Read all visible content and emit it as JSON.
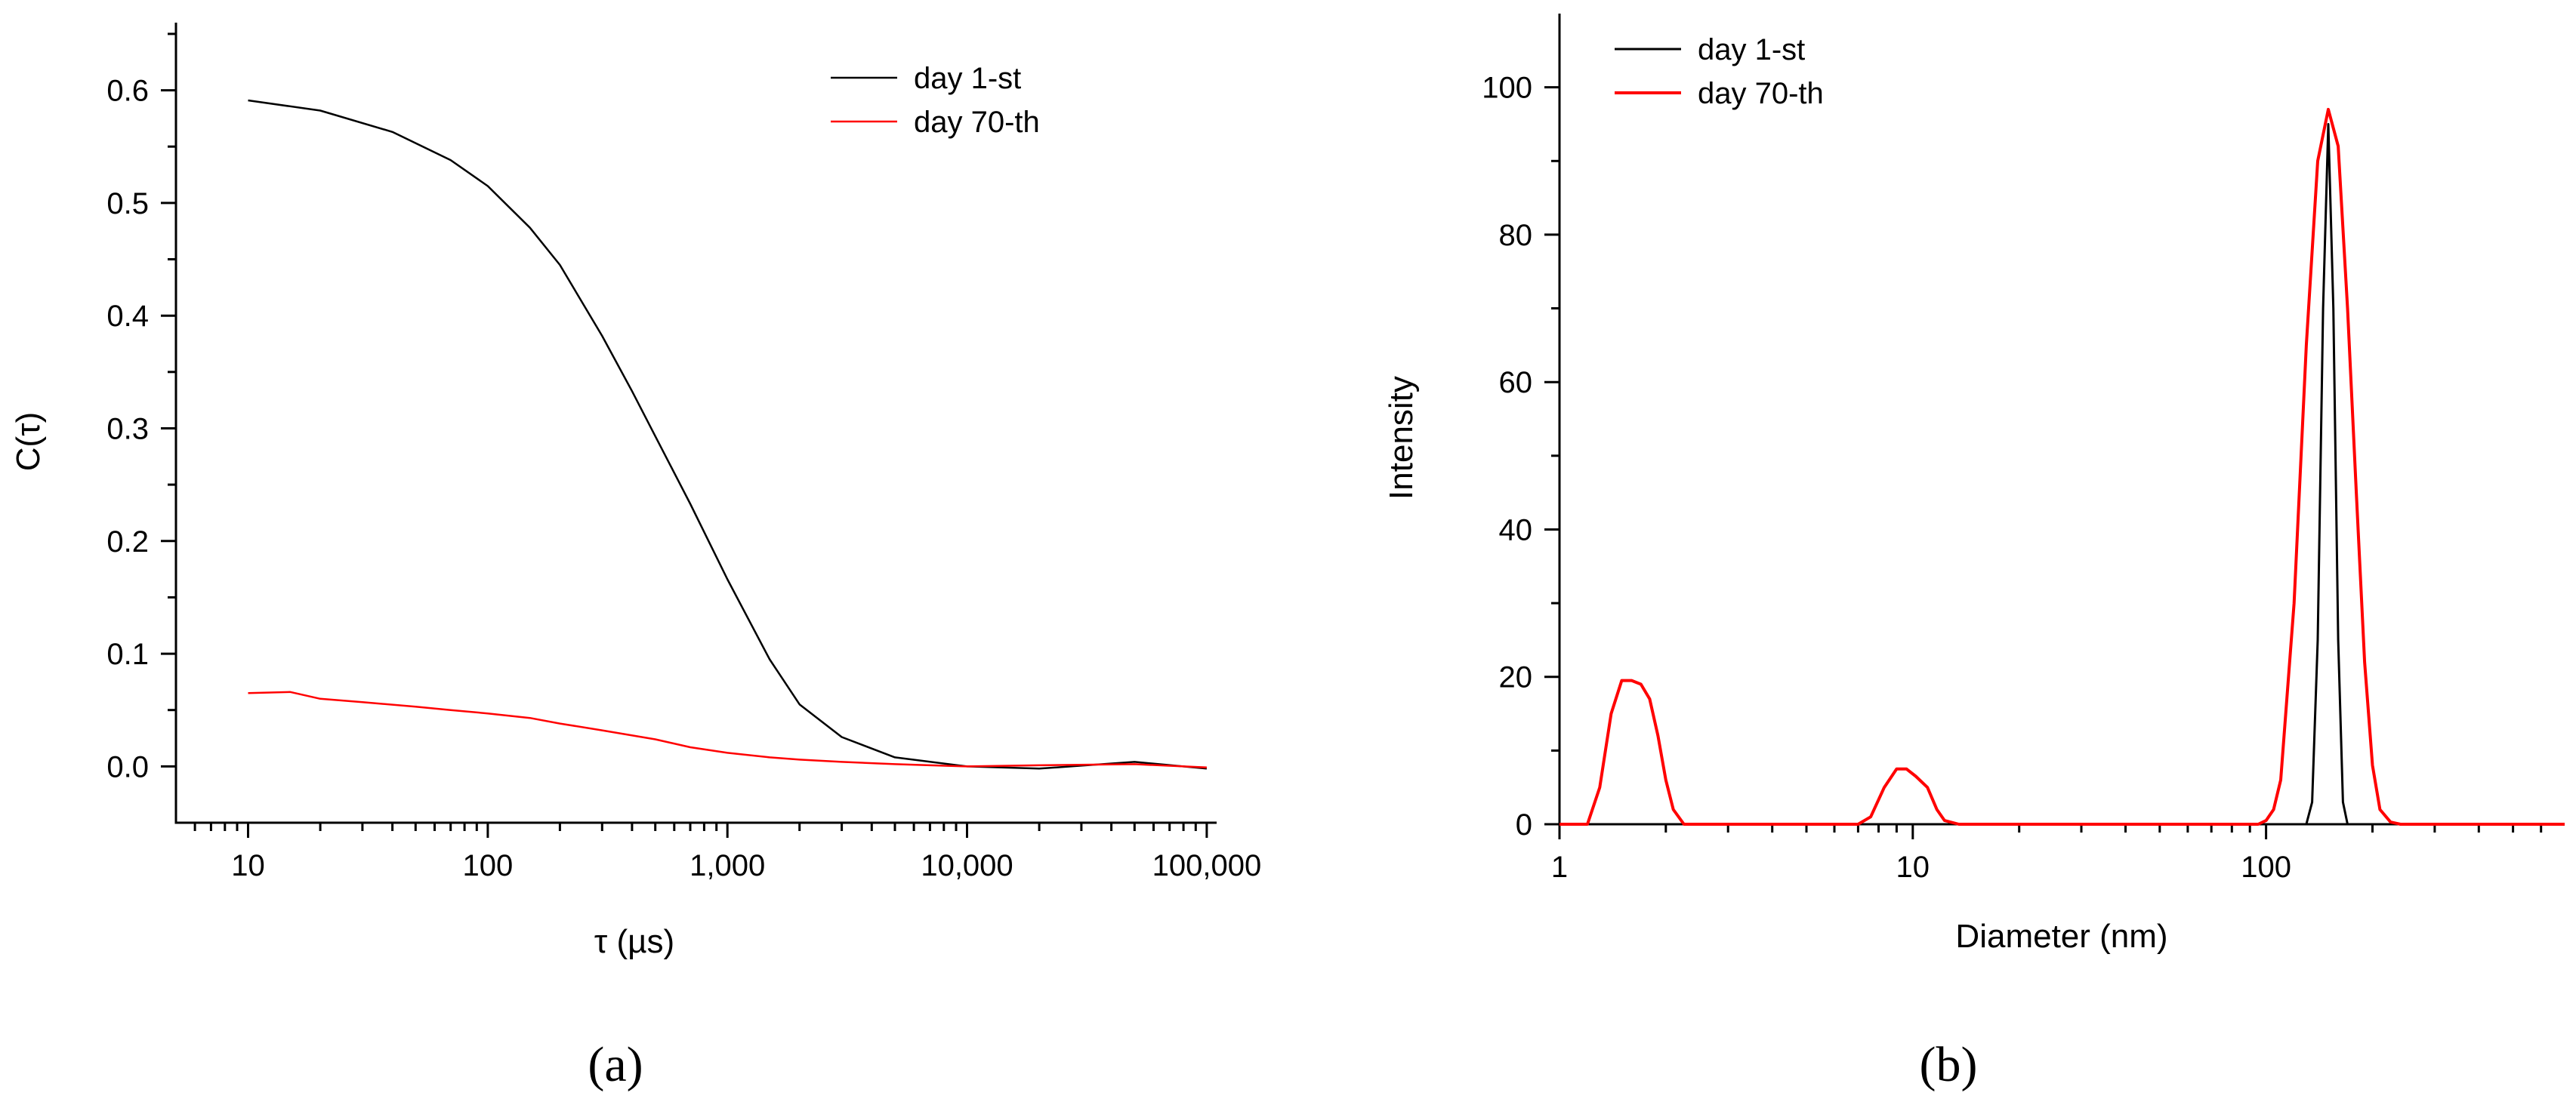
{
  "charts": [
    {
      "id": "a",
      "chart_data": {
        "type": "line",
        "xscale": "log",
        "title": "",
        "xlabel": "τ (µs)",
        "ylabel": "C(τ)",
        "xlim": [
          5,
          110000
        ],
        "ylim": [
          -0.05,
          0.66
        ],
        "x_ticks": [
          10,
          100,
          1000,
          10000,
          100000
        ],
        "x_tick_labels": [
          "10",
          "100",
          "1,000",
          "10,000",
          "100,000"
        ],
        "y_ticks": [
          0.0,
          0.1,
          0.2,
          0.3,
          0.4,
          0.5,
          0.6
        ],
        "y_tick_labels": [
          "0.0",
          "0.1",
          "0.2",
          "0.3",
          "0.4",
          "0.5",
          "0.6"
        ],
        "legend_position": "top-right",
        "series": [
          {
            "name": "day 1-st",
            "color": "#000000",
            "x": [
              10,
              20,
              40,
              70,
              100,
              150,
              200,
              300,
              400,
              500,
              700,
              1000,
              1500,
              2000,
              3000,
              5000,
              10000,
              20000,
              50000,
              100000
            ],
            "y": [
              0.591,
              0.582,
              0.563,
              0.538,
              0.515,
              0.478,
              0.445,
              0.382,
              0.333,
              0.293,
              0.233,
              0.166,
              0.095,
              0.055,
              0.026,
              0.008,
              0.0,
              -0.002,
              0.004,
              -0.002
            ]
          },
          {
            "name": "day 70-th",
            "color": "#ff0000",
            "x": [
              10,
              15,
              20,
              30,
              50,
              70,
              100,
              150,
              200,
              300,
              500,
              700,
              1000,
              1500,
              2000,
              3000,
              5000,
              7000,
              10000,
              20000,
              50000,
              100000
            ],
            "y": [
              0.065,
              0.066,
              0.06,
              0.057,
              0.053,
              0.05,
              0.047,
              0.043,
              0.038,
              0.032,
              0.024,
              0.017,
              0.012,
              0.008,
              0.006,
              0.004,
              0.002,
              0.001,
              0.0,
              0.001,
              0.002,
              -0.001
            ]
          }
        ]
      },
      "panel_label": "(a)"
    },
    {
      "id": "b",
      "chart_data": {
        "type": "line",
        "xscale": "log",
        "title": "",
        "xlabel": "Diameter (nm)",
        "ylabel": "Intensity",
        "xlim": [
          1,
          700
        ],
        "ylim": [
          0,
          110
        ],
        "x_ticks": [
          1,
          10,
          100
        ],
        "x_tick_labels": [
          "1",
          "10",
          "100"
        ],
        "y_ticks": [
          0,
          20,
          40,
          60,
          80,
          100
        ],
        "y_tick_labels": [
          "0",
          "20",
          "40",
          "60",
          "80",
          "100"
        ],
        "legend_position": "top-left",
        "series": [
          {
            "name": "day 1-st",
            "color": "#000000",
            "x": [
              1,
              100,
              130,
              135,
              140,
              145,
              150,
              155,
              160,
              165,
              170,
              700
            ],
            "y": [
              0,
              0,
              0,
              3,
              25,
              70,
              95,
              70,
              25,
              3,
              0,
              0
            ]
          },
          {
            "name": "day 70-th",
            "color": "#ff0000",
            "x": [
              1,
              1.2,
              1.3,
              1.4,
              1.5,
              1.6,
              1.7,
              1.8,
              1.9,
              2.0,
              2.1,
              2.25,
              7.0,
              7.6,
              8.3,
              9.0,
              9.6,
              10.2,
              11.0,
              11.7,
              12.3,
              13.5,
              95,
              100,
              105,
              110,
              120,
              130,
              140,
              150,
              160,
              170,
              180,
              190,
              200,
              210,
              225,
              240,
              700
            ],
            "y": [
              0,
              0,
              5,
              15,
              19.5,
              19.5,
              19,
              17,
              12,
              6,
              2,
              0,
              0,
              1,
              5,
              7.5,
              7.5,
              6.5,
              5,
              2,
              0.5,
              0,
              0,
              0.5,
              2,
              6,
              30,
              65,
              90,
              97,
              92,
              70,
              45,
              22,
              8,
              2,
              0.3,
              0,
              0
            ]
          }
        ]
      },
      "panel_label": "(b)"
    }
  ]
}
